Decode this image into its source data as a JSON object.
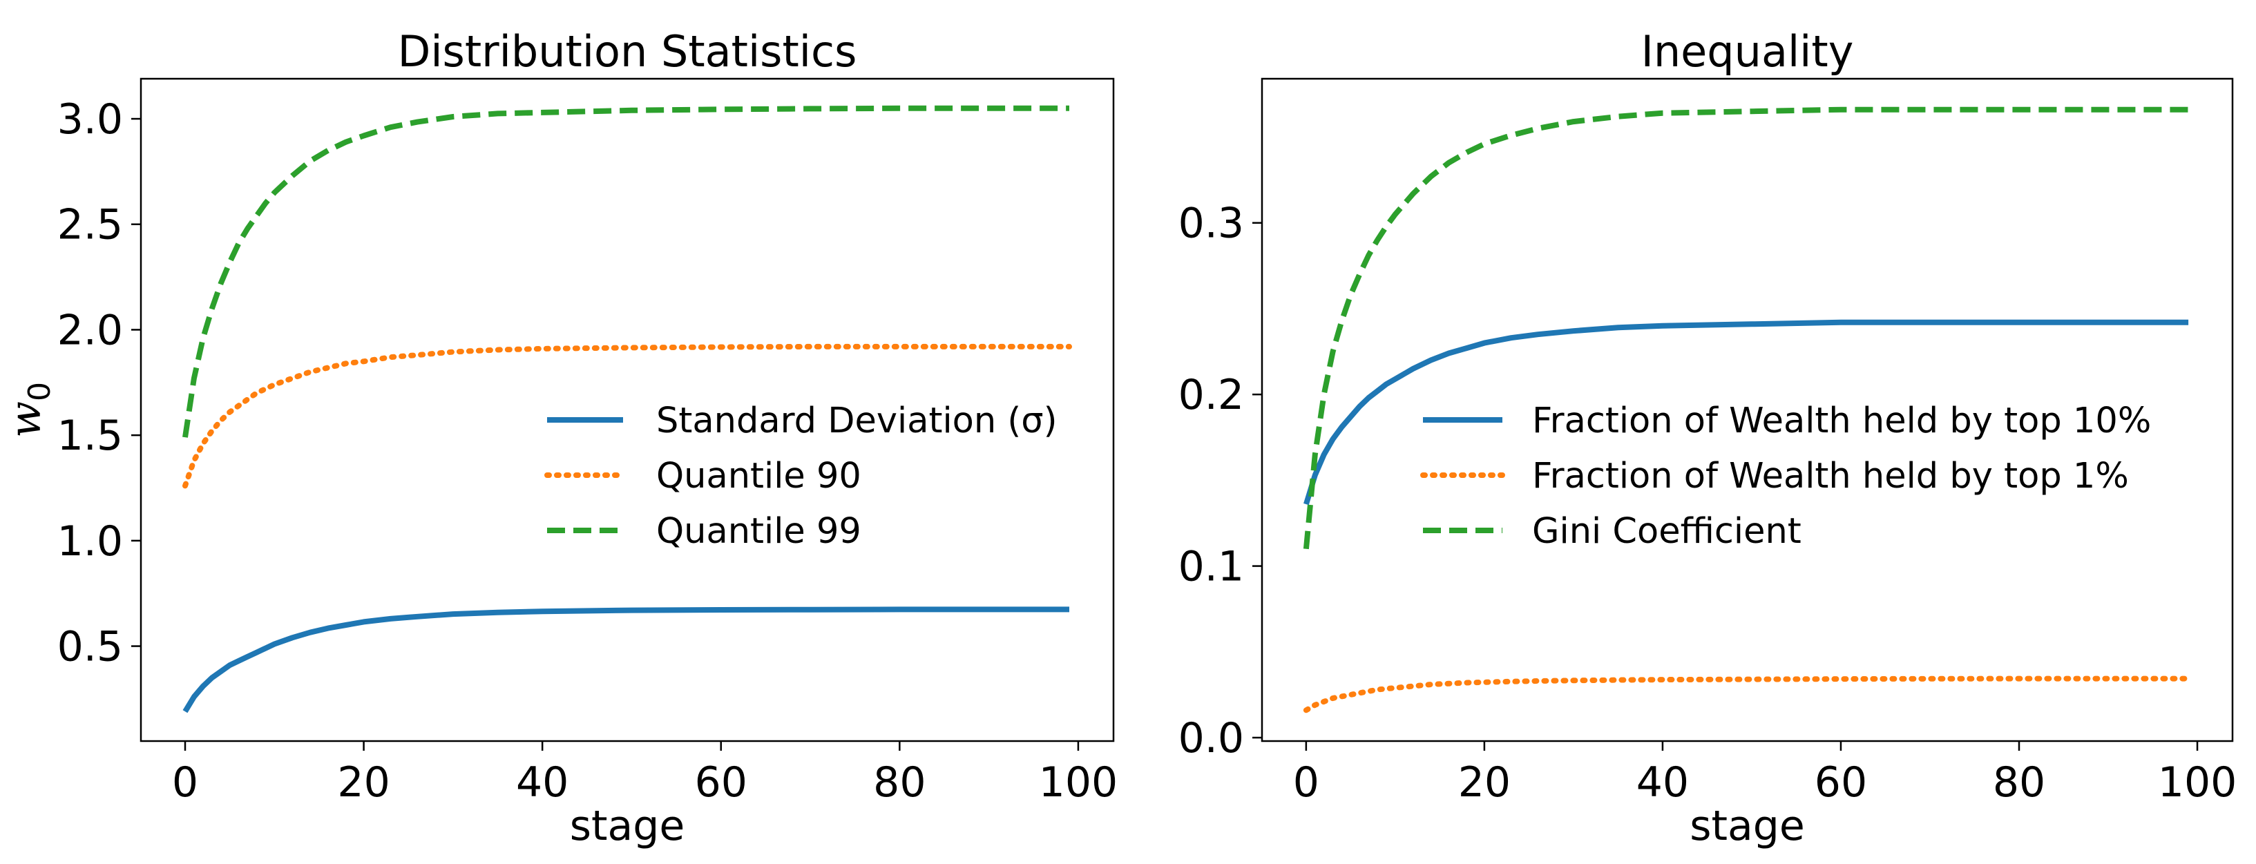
{
  "chart_data": [
    {
      "type": "line",
      "title": "Distribution Statistics",
      "xlabel": "stage",
      "ylabel": "w",
      "ylabel_subscript": "0",
      "xlim": [
        -4.95,
        103.95
      ],
      "ylim": [
        0.05,
        3.19
      ],
      "xticks": [
        0,
        20,
        40,
        60,
        80,
        100
      ],
      "yticks": [
        0.5,
        1.0,
        1.5,
        2.0,
        2.5,
        3.0
      ],
      "legend_position": "center-right",
      "series": [
        {
          "name": "Standard Deviation (σ)",
          "color": "#1f77b4",
          "style": "solid",
          "x": [
            0,
            1,
            2,
            3,
            4,
            5,
            6,
            7,
            8,
            9,
            10,
            12,
            14,
            16,
            18,
            20,
            23,
            26,
            30,
            35,
            40,
            50,
            60,
            70,
            80,
            90,
            99
          ],
          "values": [
            0.19,
            0.26,
            0.31,
            0.35,
            0.38,
            0.41,
            0.43,
            0.45,
            0.47,
            0.49,
            0.51,
            0.54,
            0.565,
            0.585,
            0.6,
            0.615,
            0.63,
            0.64,
            0.652,
            0.66,
            0.665,
            0.67,
            0.672,
            0.673,
            0.674,
            0.674,
            0.674
          ]
        },
        {
          "name": "Quantile 90",
          "color": "#ff7f0e",
          "style": "dotted",
          "x": [
            0,
            1,
            2,
            3,
            4,
            5,
            6,
            7,
            8,
            9,
            10,
            12,
            14,
            16,
            18,
            20,
            23,
            26,
            30,
            35,
            40,
            50,
            60,
            70,
            80,
            90,
            99
          ],
          "values": [
            1.26,
            1.38,
            1.46,
            1.52,
            1.57,
            1.61,
            1.64,
            1.67,
            1.7,
            1.72,
            1.74,
            1.77,
            1.8,
            1.82,
            1.84,
            1.85,
            1.87,
            1.88,
            1.895,
            1.905,
            1.91,
            1.915,
            1.918,
            1.92,
            1.92,
            1.92,
            1.92
          ]
        },
        {
          "name": "Quantile 99",
          "color": "#2ca02c",
          "style": "dashed",
          "x": [
            0,
            1,
            2,
            3,
            4,
            5,
            6,
            7,
            8,
            9,
            10,
            12,
            14,
            16,
            18,
            20,
            23,
            26,
            30,
            35,
            40,
            50,
            60,
            70,
            80,
            90,
            99
          ],
          "values": [
            1.49,
            1.77,
            1.96,
            2.1,
            2.22,
            2.32,
            2.41,
            2.48,
            2.54,
            2.6,
            2.65,
            2.73,
            2.8,
            2.85,
            2.89,
            2.92,
            2.96,
            2.985,
            3.01,
            3.025,
            3.03,
            3.04,
            3.045,
            3.048,
            3.05,
            3.05,
            3.05
          ]
        }
      ]
    },
    {
      "type": "line",
      "title": "Inequality",
      "xlabel": "stage",
      "ylabel": "",
      "xlim": [
        -4.95,
        103.95
      ],
      "ylim": [
        -0.002,
        0.384
      ],
      "xticks": [
        0,
        20,
        40,
        60,
        80,
        100
      ],
      "yticks": [
        0.0,
        0.1,
        0.2,
        0.3
      ],
      "legend_position": "center-right",
      "series": [
        {
          "name": "Fraction of Wealth held by top 10%",
          "color": "#1f77b4",
          "style": "solid",
          "x": [
            0,
            1,
            2,
            3,
            4,
            5,
            6,
            7,
            8,
            9,
            10,
            12,
            14,
            16,
            18,
            20,
            23,
            26,
            30,
            35,
            40,
            50,
            60,
            70,
            80,
            90,
            99
          ],
          "values": [
            0.136,
            0.153,
            0.165,
            0.174,
            0.181,
            0.187,
            0.193,
            0.198,
            0.202,
            0.206,
            0.209,
            0.215,
            0.22,
            0.224,
            0.227,
            0.23,
            0.233,
            0.235,
            0.237,
            0.239,
            0.24,
            0.241,
            0.242,
            0.242,
            0.242,
            0.242,
            0.242
          ]
        },
        {
          "name": "Fraction of Wealth held by top 1%",
          "color": "#ff7f0e",
          "style": "dotted",
          "x": [
            0,
            1,
            2,
            3,
            4,
            5,
            6,
            7,
            8,
            9,
            10,
            12,
            14,
            16,
            18,
            20,
            23,
            26,
            30,
            35,
            40,
            50,
            60,
            70,
            80,
            90,
            99
          ],
          "values": [
            0.016,
            0.019,
            0.021,
            0.023,
            0.024,
            0.025,
            0.026,
            0.027,
            0.028,
            0.0285,
            0.029,
            0.03,
            0.031,
            0.0315,
            0.032,
            0.0323,
            0.0327,
            0.033,
            0.0333,
            0.0336,
            0.0338,
            0.034,
            0.0342,
            0.0343,
            0.0344,
            0.0344,
            0.0344
          ]
        },
        {
          "name": "Gini Coefficient",
          "color": "#2ca02c",
          "style": "dashed",
          "x": [
            0,
            1,
            2,
            3,
            4,
            5,
            6,
            7,
            8,
            9,
            10,
            12,
            14,
            16,
            18,
            20,
            23,
            26,
            30,
            35,
            40,
            50,
            60,
            70,
            80,
            90,
            99
          ],
          "values": [
            0.11,
            0.165,
            0.2,
            0.225,
            0.243,
            0.258,
            0.27,
            0.281,
            0.29,
            0.298,
            0.305,
            0.317,
            0.327,
            0.335,
            0.341,
            0.346,
            0.351,
            0.355,
            0.359,
            0.362,
            0.364,
            0.365,
            0.366,
            0.366,
            0.366,
            0.366,
            0.366
          ]
        }
      ]
    }
  ]
}
